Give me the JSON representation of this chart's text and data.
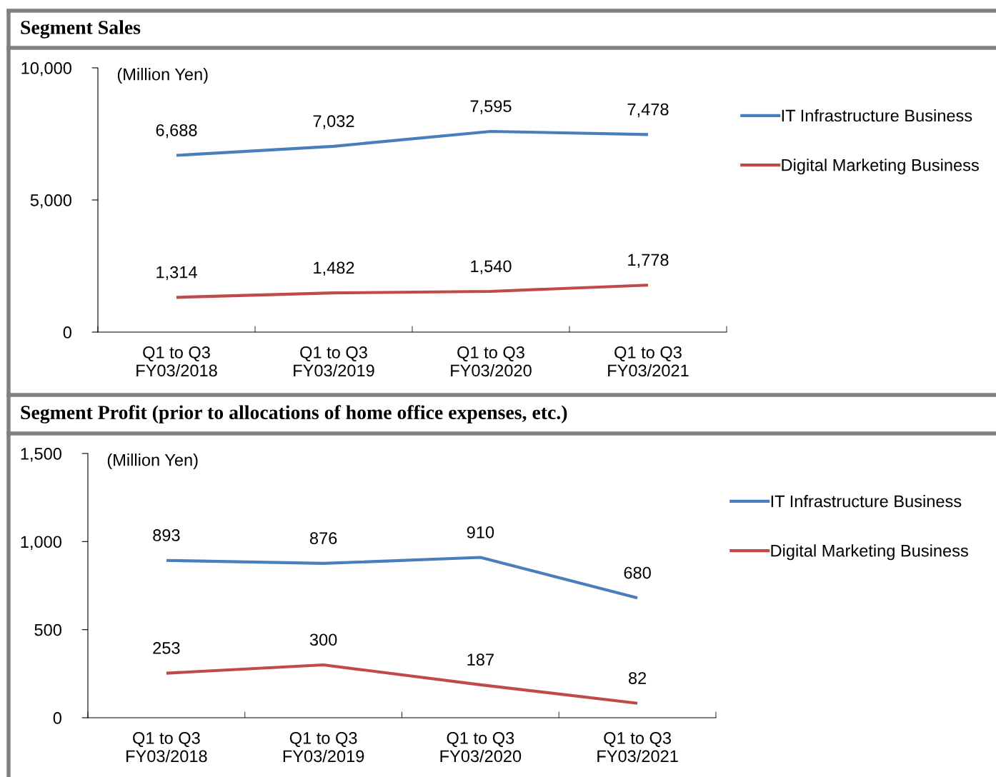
{
  "chart_data": [
    {
      "type": "line",
      "title": "Segment Sales",
      "annotations": [
        "(Million Yen)"
      ],
      "categories": [
        "Q1 to Q3\nFY03/2018",
        "Q1 to Q3\nFY03/2019",
        "Q1 to Q3\nFY03/2020",
        "Q1 to Q3\nFY03/2021"
      ],
      "series": [
        {
          "name": "IT Infrastructure Business",
          "color": "#4a7ebb",
          "values": [
            6688,
            7032,
            7595,
            7478
          ],
          "value_labels": [
            "6,688",
            "7,032",
            "7,595",
            "7,478"
          ]
        },
        {
          "name": "Digital Marketing Business",
          "color": "#be4b48",
          "values": [
            1314,
            1482,
            1540,
            1778
          ],
          "value_labels": [
            "1,314",
            "1,482",
            "1,540",
            "1,778"
          ]
        }
      ],
      "ylim": [
        0,
        10000
      ],
      "yticks": [
        0,
        {
          "value": 5000,
          "label": "5,000"
        },
        {
          "value": 10000,
          "label": "10,000"
        }
      ],
      "grid": false,
      "legend": "right",
      "marker": "none",
      "line_style": "solid"
    },
    {
      "type": "line",
      "title": "Segment Profit (prior to allocations of home office expenses, etc.)",
      "annotations": [
        "(Million Yen)"
      ],
      "categories": [
        "Q1 to Q3\nFY03/2018",
        "Q1 to Q3\nFY03/2019",
        "Q1 to Q3\nFY03/2020",
        "Q1 to Q3\nFY03/2021"
      ],
      "series": [
        {
          "name": "IT Infrastructure Business",
          "color": "#4a7ebb",
          "values": [
            893,
            876,
            910,
            680
          ],
          "value_labels": [
            "893",
            "876",
            "910",
            "680"
          ]
        },
        {
          "name": "Digital Marketing Business",
          "color": "#be4b48",
          "values": [
            253,
            300,
            187,
            82
          ],
          "value_labels": [
            "253",
            "300",
            "187",
            "82"
          ]
        }
      ],
      "ylim": [
        0,
        1500
      ],
      "yticks": [
        0,
        500,
        {
          "value": 1000,
          "label": "1,000"
        },
        {
          "value": 1500,
          "label": "1,500"
        }
      ],
      "grid": false,
      "legend": "right",
      "marker": "none",
      "line_style": "solid"
    }
  ]
}
